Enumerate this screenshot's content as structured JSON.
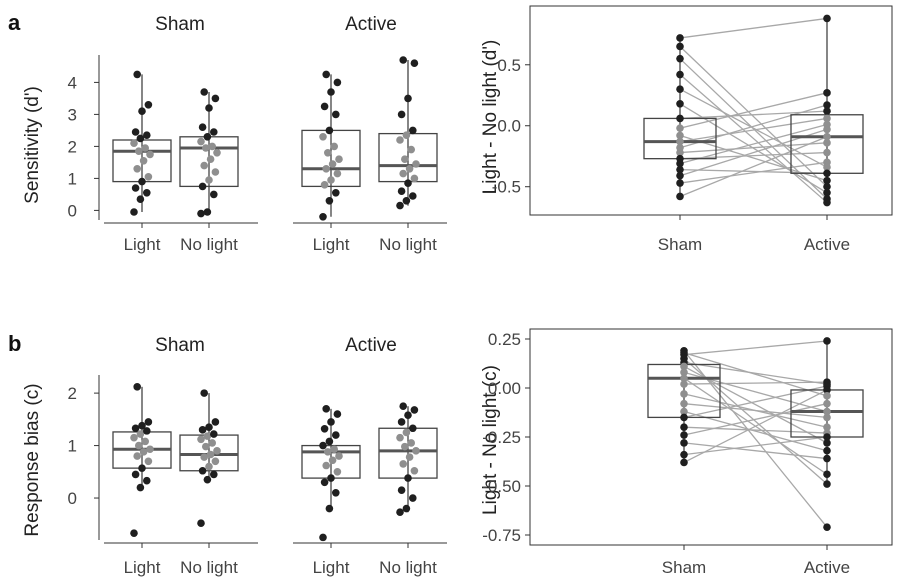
{
  "chart_data": [
    {
      "id": "a-left",
      "panel_label": "a",
      "type": "box",
      "facets": [
        "Sham",
        "Active"
      ],
      "categories": [
        "Light",
        "No light"
      ],
      "ylabel": "Sensitivity (d')",
      "yticks": [
        0,
        1,
        2,
        3,
        4
      ],
      "ylim": [
        -0.3,
        4.7
      ],
      "groups": [
        {
          "facet": "Sham",
          "category": "Light",
          "box": {
            "q1": 0.9,
            "median": 1.85,
            "q3": 2.2,
            "whisker_low": -0.05,
            "whisker_high": 4.25
          },
          "points": [
            -0.05,
            0.35,
            0.55,
            0.7,
            0.9,
            1.05,
            1.3,
            1.55,
            1.75,
            1.85,
            1.95,
            2.1,
            2.25,
            2.35,
            2.45,
            3.1,
            3.3,
            4.25
          ]
        },
        {
          "facet": "Sham",
          "category": "No light",
          "box": {
            "q1": 0.75,
            "median": 1.95,
            "q3": 2.3,
            "whisker_low": -0.1,
            "whisker_high": 3.7
          },
          "points": [
            -0.1,
            -0.05,
            0.5,
            0.75,
            0.95,
            1.2,
            1.4,
            1.6,
            1.8,
            1.95,
            2.0,
            2.15,
            2.3,
            2.45,
            2.6,
            3.2,
            3.5,
            3.7
          ]
        },
        {
          "facet": "Active",
          "category": "Light",
          "box": {
            "q1": 0.75,
            "median": 1.3,
            "q3": 2.5,
            "whisker_low": -0.2,
            "whisker_high": 4.25
          },
          "points": [
            -0.2,
            0.3,
            0.55,
            0.8,
            0.95,
            1.15,
            1.3,
            1.45,
            1.6,
            1.8,
            2.0,
            2.3,
            2.5,
            3.0,
            3.25,
            3.7,
            4.0,
            4.25
          ]
        },
        {
          "facet": "Active",
          "category": "No light",
          "box": {
            "q1": 0.9,
            "median": 1.4,
            "q3": 2.4,
            "whisker_low": 0.15,
            "whisker_high": 4.7
          },
          "points": [
            0.15,
            0.3,
            0.45,
            0.6,
            0.85,
            1.0,
            1.15,
            1.3,
            1.45,
            1.6,
            1.9,
            2.2,
            2.35,
            2.5,
            3.0,
            3.5,
            4.6,
            4.7
          ]
        }
      ]
    },
    {
      "id": "a-right",
      "type": "box",
      "categories": [
        "Sham",
        "Active"
      ],
      "ylabel": "Light - No light (d')",
      "yticks": [
        -0.5,
        0.0,
        0.5
      ],
      "ylim": [
        -0.65,
        0.9
      ],
      "groups": [
        {
          "category": "Sham",
          "box": {
            "q1": -0.27,
            "median": -0.13,
            "q3": 0.06,
            "whisker_low": -0.58,
            "whisker_high": 0.72
          },
          "points": [
            0.72,
            0.65,
            0.55,
            0.42,
            0.3,
            0.18,
            0.06,
            -0.02,
            -0.08,
            -0.13,
            -0.18,
            -0.22,
            -0.27,
            -0.31,
            -0.36,
            -0.41,
            -0.47,
            -0.58
          ]
        },
        {
          "category": "Active",
          "box": {
            "q1": -0.39,
            "median": -0.09,
            "q3": 0.09,
            "whisker_low": -0.63,
            "whisker_high": 0.88
          },
          "points": [
            0.88,
            0.27,
            0.17,
            0.12,
            0.06,
            0.01,
            -0.03,
            -0.09,
            -0.14,
            -0.22,
            -0.3,
            -0.34,
            -0.39,
            -0.45,
            -0.5,
            -0.55,
            -0.6,
            -0.63
          ]
        }
      ],
      "pairs": [
        [
          0.72,
          0.88
        ],
        [
          0.65,
          -0.5
        ],
        [
          0.55,
          -0.6
        ],
        [
          0.42,
          -0.63
        ],
        [
          0.3,
          -0.34
        ],
        [
          0.18,
          -0.55
        ],
        [
          0.06,
          0.12
        ],
        [
          -0.02,
          0.27
        ],
        [
          -0.08,
          -0.45
        ],
        [
          -0.13,
          0.06
        ],
        [
          -0.18,
          0.17
        ],
        [
          -0.22,
          -0.14
        ],
        [
          -0.27,
          -0.22
        ],
        [
          -0.31,
          0.01
        ],
        [
          -0.36,
          -0.39
        ],
        [
          -0.41,
          -0.03
        ],
        [
          -0.47,
          -0.3
        ],
        [
          -0.58,
          -0.09
        ]
      ]
    },
    {
      "id": "b-left",
      "panel_label": "b",
      "type": "box",
      "facets": [
        "Sham",
        "Active"
      ],
      "categories": [
        "Light",
        "No light"
      ],
      "ylabel": "Response bias (c)",
      "yticks": [
        0,
        1,
        2
      ],
      "ylim": [
        -0.8,
        2.25
      ],
      "groups": [
        {
          "facet": "Sham",
          "category": "Light",
          "box": {
            "q1": 0.57,
            "median": 0.93,
            "q3": 1.26,
            "whisker_low": 0.2,
            "whisker_high": 2.12
          },
          "points": [
            -0.67,
            0.2,
            0.33,
            0.45,
            0.57,
            0.7,
            0.8,
            0.88,
            0.93,
            1.0,
            1.08,
            1.15,
            1.22,
            1.28,
            1.33,
            1.38,
            1.45,
            2.12
          ]
        },
        {
          "facet": "Sham",
          "category": "No light",
          "box": {
            "q1": 0.52,
            "median": 0.83,
            "q3": 1.2,
            "whisker_low": 0.35,
            "whisker_high": 2.0
          },
          "points": [
            -0.48,
            0.35,
            0.45,
            0.52,
            0.6,
            0.7,
            0.78,
            0.83,
            0.9,
            0.98,
            1.05,
            1.12,
            1.18,
            1.22,
            1.3,
            1.35,
            1.45,
            2.0
          ]
        },
        {
          "facet": "Active",
          "category": "Light",
          "box": {
            "q1": 0.38,
            "median": 0.88,
            "q3": 1.0,
            "whisker_low": -0.2,
            "whisker_high": 1.7
          },
          "points": [
            -0.75,
            -0.2,
            0.1,
            0.3,
            0.38,
            0.5,
            0.62,
            0.72,
            0.8,
            0.88,
            0.93,
            1.0,
            1.08,
            1.2,
            1.32,
            1.45,
            1.6,
            1.7
          ]
        },
        {
          "facet": "Active",
          "category": "No light",
          "box": {
            "q1": 0.38,
            "median": 0.9,
            "q3": 1.33,
            "whisker_low": -0.27,
            "whisker_high": 1.75
          },
          "points": [
            -0.27,
            -0.2,
            0.0,
            0.15,
            0.38,
            0.52,
            0.65,
            0.78,
            0.9,
            0.98,
            1.05,
            1.15,
            1.25,
            1.33,
            1.45,
            1.58,
            1.68,
            1.75
          ]
        }
      ]
    },
    {
      "id": "b-right",
      "type": "box",
      "categories": [
        "Sham",
        "Active"
      ],
      "ylabel": "Light - No light (c)",
      "yticks": [
        0.25,
        0.0,
        -0.25,
        -0.5,
        -0.75
      ],
      "tick_labels": [
        "0.25",
        "0.00",
        "-0.25",
        "-0.50",
        "-0.75"
      ],
      "ylim": [
        -0.75,
        0.25
      ],
      "groups": [
        {
          "category": "Sham",
          "box": {
            "q1": -0.15,
            "median": 0.05,
            "q3": 0.12,
            "whisker_low": -0.38,
            "whisker_high": 0.19
          },
          "points": [
            0.19,
            0.18,
            0.17,
            0.15,
            0.13,
            0.11,
            0.08,
            0.05,
            0.02,
            -0.03,
            -0.08,
            -0.12,
            -0.15,
            -0.2,
            -0.24,
            -0.28,
            -0.34,
            -0.38
          ]
        },
        {
          "category": "Active",
          "box": {
            "q1": -0.25,
            "median": -0.12,
            "q3": -0.01,
            "whisker_low": -0.49,
            "whisker_high": 0.24
          },
          "points": [
            0.24,
            0.03,
            0.02,
            0.01,
            -0.01,
            -0.04,
            -0.08,
            -0.12,
            -0.15,
            -0.2,
            -0.23,
            -0.25,
            -0.28,
            -0.32,
            -0.36,
            -0.44,
            -0.49,
            -0.71
          ]
        }
      ],
      "pairs": [
        [
          0.19,
          -0.71
        ],
        [
          0.18,
          -0.04
        ],
        [
          0.17,
          0.24
        ],
        [
          0.15,
          -0.49
        ],
        [
          0.13,
          0.02
        ],
        [
          0.11,
          -0.28
        ],
        [
          0.08,
          -0.12
        ],
        [
          0.05,
          -0.44
        ],
        [
          0.02,
          0.03
        ],
        [
          -0.03,
          -0.2
        ],
        [
          -0.08,
          -0.15
        ],
        [
          -0.12,
          -0.32
        ],
        [
          -0.15,
          0.01
        ],
        [
          -0.2,
          -0.23
        ],
        [
          -0.24,
          -0.08
        ],
        [
          -0.28,
          -0.36
        ],
        [
          -0.34,
          -0.25
        ],
        [
          -0.38,
          -0.01
        ]
      ]
    }
  ],
  "colors": {
    "dark_point": "#1f1f1f",
    "light_point": "#8f8f8f",
    "pair_line": "#a8a8a8",
    "axis": "#333333"
  }
}
